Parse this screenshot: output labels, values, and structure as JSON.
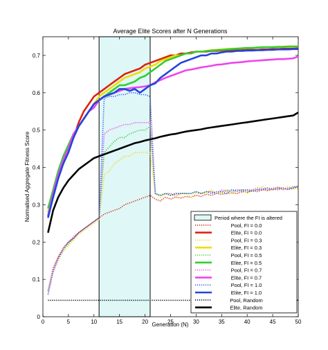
{
  "chart_data": {
    "type": "line",
    "title": "Average Elite Scores after N Generations",
    "xlabel": "Generation (N)",
    "ylabel": "Normalised Aggregate Fitness Score",
    "xlim": [
      0,
      50
    ],
    "ylim": [
      0,
      0.75
    ],
    "xticks": [
      0,
      5,
      10,
      15,
      20,
      25,
      30,
      35,
      40,
      45,
      50
    ],
    "yticks": [
      0,
      0.1,
      0.2,
      0.3,
      0.4,
      0.5,
      0.6,
      0.7
    ],
    "xtick_labels": [
      "0",
      "5",
      "10",
      "15",
      "20",
      "25",
      "30",
      "35",
      "40",
      "45",
      "50"
    ],
    "ytick_labels": [
      "0",
      "0.1",
      "0.2",
      "0.3",
      "0.4",
      "0.5",
      "0.6",
      "0.7"
    ],
    "grid": false,
    "legend_position": "bottom-right",
    "highlight_region": {
      "label": "Period where the FI is altered",
      "x_start": 11,
      "x_end": 21,
      "color": "#dff7f7"
    },
    "series": [
      {
        "name": "Pool, FI = 0.0",
        "color": "#cc2200",
        "style": "dotted",
        "x": [
          1,
          2,
          3,
          4,
          5,
          6,
          7,
          8,
          9,
          10,
          11,
          12,
          13,
          14,
          15,
          16,
          17,
          18,
          19,
          20,
          21,
          22,
          23,
          24,
          25,
          26,
          27,
          28,
          29,
          30,
          31,
          32,
          33,
          34,
          35,
          36,
          37,
          38,
          39,
          40,
          41,
          42,
          43,
          44,
          45,
          46,
          47,
          48,
          49,
          50
        ],
        "y": [
          0.07,
          0.13,
          0.16,
          0.185,
          0.2,
          0.21,
          0.225,
          0.235,
          0.245,
          0.255,
          0.265,
          0.275,
          0.28,
          0.285,
          0.29,
          0.3,
          0.305,
          0.31,
          0.315,
          0.32,
          0.325,
          0.315,
          0.31,
          0.32,
          0.315,
          0.32,
          0.318,
          0.322,
          0.32,
          0.325,
          0.322,
          0.328,
          0.325,
          0.33,
          0.328,
          0.33,
          0.332,
          0.33,
          0.335,
          0.333,
          0.338,
          0.335,
          0.34,
          0.338,
          0.342,
          0.34,
          0.345,
          0.342,
          0.345,
          0.345
        ]
      },
      {
        "name": "Elite, FI = 0.0",
        "color": "#dd2211",
        "style": "solid",
        "x": [
          1,
          2,
          3,
          4,
          5,
          6,
          7,
          8,
          9,
          10,
          11,
          12,
          13,
          14,
          15,
          16,
          17,
          18,
          19,
          20,
          21,
          22,
          23,
          24,
          25,
          26,
          27,
          28,
          29,
          30,
          31,
          32,
          33,
          34,
          35,
          36,
          37,
          38,
          39,
          40,
          41,
          42,
          43,
          44,
          45,
          46,
          47,
          48,
          49,
          50
        ],
        "y": [
          0.27,
          0.33,
          0.38,
          0.42,
          0.45,
          0.48,
          0.52,
          0.55,
          0.57,
          0.59,
          0.6,
          0.61,
          0.62,
          0.63,
          0.64,
          0.65,
          0.655,
          0.66,
          0.665,
          0.675,
          0.68,
          0.685,
          0.69,
          0.695,
          0.7,
          0.7,
          0.705,
          0.705,
          0.708,
          0.71,
          0.71,
          0.71,
          0.712,
          0.712,
          0.713,
          0.713,
          0.713,
          0.714,
          0.714,
          0.715,
          0.715,
          0.715,
          0.716,
          0.716,
          0.717,
          0.717,
          0.718,
          0.718,
          0.718,
          0.719
        ]
      },
      {
        "name": "Pool, FI = 0.3",
        "color": "#eedd00",
        "style": "dotted",
        "x": [
          1,
          2,
          3,
          4,
          5,
          6,
          7,
          8,
          9,
          10,
          11,
          12,
          13,
          14,
          15,
          16,
          17,
          18,
          19,
          20,
          21,
          22,
          23,
          24,
          25,
          26,
          27,
          28,
          29,
          30,
          31,
          32,
          33,
          34,
          35,
          36,
          37,
          38,
          39,
          40,
          41,
          42,
          43,
          44,
          45,
          46,
          47,
          48,
          49,
          50
        ],
        "y": [
          0.06,
          0.12,
          0.15,
          0.175,
          0.19,
          0.205,
          0.22,
          0.23,
          0.24,
          0.25,
          0.26,
          0.38,
          0.39,
          0.41,
          0.42,
          0.43,
          0.43,
          0.44,
          0.44,
          0.44,
          0.44,
          0.33,
          0.32,
          0.33,
          0.33,
          0.32,
          0.33,
          0.33,
          0.32,
          0.33,
          0.33,
          0.33,
          0.34,
          0.33,
          0.33,
          0.34,
          0.33,
          0.34,
          0.34,
          0.33,
          0.34,
          0.34,
          0.35,
          0.34,
          0.34,
          0.35,
          0.34,
          0.35,
          0.34,
          0.35
        ]
      },
      {
        "name": "Elite, FI = 0.3",
        "color": "#eedd00",
        "style": "solid",
        "x": [
          1,
          2,
          3,
          4,
          5,
          6,
          7,
          8,
          9,
          10,
          11,
          12,
          13,
          14,
          15,
          16,
          17,
          18,
          19,
          20,
          21,
          22,
          23,
          24,
          25,
          26,
          27,
          28,
          29,
          30,
          31,
          32,
          33,
          34,
          35,
          36,
          37,
          38,
          39,
          40,
          41,
          42,
          43,
          44,
          45,
          46,
          47,
          48,
          49,
          50
        ],
        "y": [
          0.28,
          0.33,
          0.37,
          0.41,
          0.45,
          0.48,
          0.51,
          0.53,
          0.55,
          0.57,
          0.59,
          0.6,
          0.61,
          0.62,
          0.63,
          0.64,
          0.645,
          0.65,
          0.655,
          0.665,
          0.67,
          0.675,
          0.685,
          0.69,
          0.695,
          0.7,
          0.7,
          0.705,
          0.705,
          0.71,
          0.71,
          0.712,
          0.714,
          0.715,
          0.716,
          0.717,
          0.718,
          0.718,
          0.719,
          0.72,
          0.72,
          0.721,
          0.721,
          0.722,
          0.722,
          0.722,
          0.723,
          0.723,
          0.723,
          0.724
        ]
      },
      {
        "name": "Pool, FI = 0.5",
        "color": "#33cc33",
        "style": "dotted",
        "x": [
          1,
          2,
          3,
          4,
          5,
          6,
          7,
          8,
          9,
          10,
          11,
          12,
          13,
          14,
          15,
          16,
          17,
          18,
          19,
          20,
          21,
          22,
          23,
          24,
          25,
          26,
          27,
          28,
          29,
          30,
          31,
          32,
          33,
          34,
          35,
          36,
          37,
          38,
          39,
          40,
          41,
          42,
          43,
          44,
          45,
          46,
          47,
          48,
          49,
          50
        ],
        "y": [
          0.06,
          0.12,
          0.155,
          0.18,
          0.195,
          0.21,
          0.225,
          0.235,
          0.245,
          0.255,
          0.265,
          0.44,
          0.455,
          0.47,
          0.48,
          0.48,
          0.49,
          0.495,
          0.5,
          0.5,
          0.51,
          0.33,
          0.325,
          0.33,
          0.325,
          0.33,
          0.33,
          0.33,
          0.33,
          0.335,
          0.33,
          0.335,
          0.335,
          0.33,
          0.335,
          0.34,
          0.335,
          0.34,
          0.34,
          0.335,
          0.34,
          0.345,
          0.34,
          0.345,
          0.34,
          0.345,
          0.345,
          0.34,
          0.35,
          0.345
        ]
      },
      {
        "name": "Elite, FI = 0.5",
        "color": "#33cc33",
        "style": "solid",
        "x": [
          1,
          2,
          3,
          4,
          5,
          6,
          7,
          8,
          9,
          10,
          11,
          12,
          13,
          14,
          15,
          16,
          17,
          18,
          19,
          20,
          21,
          22,
          23,
          24,
          25,
          26,
          27,
          28,
          29,
          30,
          31,
          32,
          33,
          34,
          35,
          36,
          37,
          38,
          39,
          40,
          41,
          42,
          43,
          44,
          45,
          46,
          47,
          48,
          49,
          50
        ],
        "y": [
          0.29,
          0.34,
          0.39,
          0.43,
          0.46,
          0.49,
          0.51,
          0.53,
          0.55,
          0.57,
          0.58,
          0.59,
          0.6,
          0.61,
          0.62,
          0.62,
          0.625,
          0.63,
          0.64,
          0.645,
          0.655,
          0.665,
          0.675,
          0.685,
          0.69,
          0.695,
          0.7,
          0.705,
          0.705,
          0.71,
          0.71,
          0.712,
          0.713,
          0.714,
          0.715,
          0.716,
          0.717,
          0.718,
          0.719,
          0.72,
          0.72,
          0.721,
          0.722,
          0.722,
          0.722,
          0.723,
          0.723,
          0.724,
          0.724,
          0.724
        ]
      },
      {
        "name": "Pool, FI = 0.7",
        "color": "#ee44ee",
        "style": "dotted",
        "x": [
          1,
          2,
          3,
          4,
          5,
          6,
          7,
          8,
          9,
          10,
          11,
          12,
          13,
          14,
          15,
          16,
          17,
          18,
          19,
          20,
          21,
          22,
          23,
          24,
          25,
          26,
          27,
          28,
          29,
          30,
          31,
          32,
          33,
          34,
          35,
          36,
          37,
          38,
          39,
          40,
          41,
          42,
          43,
          44,
          45,
          46,
          47,
          48,
          49,
          50
        ],
        "y": [
          0.06,
          0.125,
          0.16,
          0.18,
          0.2,
          0.215,
          0.225,
          0.235,
          0.245,
          0.255,
          0.265,
          0.49,
          0.5,
          0.505,
          0.51,
          0.515,
          0.515,
          0.52,
          0.52,
          0.52,
          0.52,
          0.33,
          0.325,
          0.33,
          0.33,
          0.325,
          0.33,
          0.33,
          0.33,
          0.335,
          0.33,
          0.335,
          0.335,
          0.33,
          0.34,
          0.335,
          0.34,
          0.34,
          0.335,
          0.34,
          0.34,
          0.34,
          0.345,
          0.34,
          0.345,
          0.345,
          0.34,
          0.345,
          0.345,
          0.35
        ]
      },
      {
        "name": "Elite, FI = 0.7",
        "color": "#ee44ee",
        "style": "solid",
        "x": [
          1,
          2,
          3,
          4,
          5,
          6,
          7,
          8,
          9,
          10,
          11,
          12,
          13,
          14,
          15,
          16,
          17,
          18,
          19,
          20,
          21,
          22,
          23,
          24,
          25,
          26,
          27,
          28,
          29,
          30,
          31,
          32,
          33,
          34,
          35,
          36,
          37,
          38,
          39,
          40,
          41,
          42,
          43,
          44,
          45,
          46,
          47,
          48,
          49,
          50
        ],
        "y": [
          0.27,
          0.33,
          0.38,
          0.42,
          0.45,
          0.49,
          0.51,
          0.53,
          0.55,
          0.56,
          0.58,
          0.59,
          0.595,
          0.6,
          0.605,
          0.61,
          0.612,
          0.614,
          0.615,
          0.617,
          0.62,
          0.628,
          0.634,
          0.64,
          0.645,
          0.65,
          0.655,
          0.66,
          0.662,
          0.665,
          0.668,
          0.67,
          0.672,
          0.675,
          0.676,
          0.678,
          0.68,
          0.681,
          0.682,
          0.684,
          0.685,
          0.686,
          0.687,
          0.688,
          0.689,
          0.69,
          0.69,
          0.691,
          0.692,
          0.697
        ]
      },
      {
        "name": "Pool, FI = 1.0",
        "color": "#3355ee",
        "style": "dotted",
        "x": [
          1,
          2,
          3,
          4,
          5,
          6,
          7,
          8,
          9,
          10,
          11,
          12,
          13,
          14,
          15,
          16,
          17,
          18,
          19,
          20,
          21,
          22,
          23,
          24,
          25,
          26,
          27,
          28,
          29,
          30,
          31,
          32,
          33,
          34,
          35,
          36,
          37,
          38,
          39,
          40,
          41,
          42,
          43,
          44,
          45,
          46,
          47,
          48,
          49,
          50
        ],
        "y": [
          0.06,
          0.12,
          0.155,
          0.18,
          0.2,
          0.21,
          0.225,
          0.235,
          0.245,
          0.255,
          0.265,
          0.585,
          0.59,
          0.59,
          0.595,
          0.595,
          0.6,
          0.6,
          0.595,
          0.595,
          0.59,
          0.33,
          0.325,
          0.33,
          0.325,
          0.33,
          0.33,
          0.33,
          0.33,
          0.335,
          0.33,
          0.335,
          0.33,
          0.335,
          0.335,
          0.33,
          0.34,
          0.335,
          0.34,
          0.34,
          0.335,
          0.34,
          0.34,
          0.345,
          0.34,
          0.345,
          0.345,
          0.34,
          0.345,
          0.35
        ]
      },
      {
        "name": "Elite, FI = 1.0",
        "color": "#2244dd",
        "style": "solid",
        "x": [
          1,
          2,
          3,
          4,
          5,
          6,
          7,
          8,
          9,
          10,
          11,
          12,
          13,
          14,
          15,
          16,
          17,
          18,
          19,
          20,
          21,
          22,
          23,
          24,
          25,
          26,
          27,
          28,
          29,
          30,
          31,
          32,
          33,
          34,
          35,
          36,
          37,
          38,
          39,
          40,
          41,
          42,
          43,
          44,
          45,
          46,
          47,
          48,
          49,
          50
        ],
        "y": [
          0.265,
          0.32,
          0.37,
          0.41,
          0.44,
          0.48,
          0.51,
          0.53,
          0.55,
          0.57,
          0.58,
          0.59,
          0.595,
          0.6,
          0.61,
          0.61,
          0.605,
          0.61,
          0.6,
          0.61,
          0.62,
          0.625,
          0.64,
          0.65,
          0.66,
          0.67,
          0.68,
          0.685,
          0.69,
          0.695,
          0.7,
          0.7,
          0.705,
          0.705,
          0.708,
          0.71,
          0.71,
          0.712,
          0.712,
          0.713,
          0.713,
          0.714,
          0.714,
          0.715,
          0.715,
          0.716,
          0.716,
          0.716,
          0.717,
          0.717
        ]
      },
      {
        "name": "Pool, Random",
        "color": "#000000",
        "style": "dotted",
        "x": [
          1,
          50
        ],
        "y": [
          0.044,
          0.044
        ]
      },
      {
        "name": "Elite, Random",
        "color": "#000000",
        "style": "solid",
        "x": [
          1,
          2,
          3,
          4,
          5,
          6,
          7,
          8,
          9,
          10,
          11,
          12,
          13,
          14,
          15,
          16,
          17,
          18,
          19,
          20,
          21,
          22,
          23,
          24,
          25,
          26,
          27,
          28,
          29,
          30,
          31,
          32,
          33,
          34,
          35,
          36,
          37,
          38,
          39,
          40,
          41,
          42,
          43,
          44,
          45,
          46,
          47,
          48,
          49,
          50
        ],
        "y": [
          0.225,
          0.285,
          0.32,
          0.345,
          0.365,
          0.38,
          0.395,
          0.405,
          0.415,
          0.425,
          0.43,
          0.435,
          0.44,
          0.445,
          0.45,
          0.455,
          0.46,
          0.465,
          0.468,
          0.472,
          0.475,
          0.478,
          0.482,
          0.485,
          0.488,
          0.49,
          0.493,
          0.496,
          0.498,
          0.5,
          0.502,
          0.505,
          0.507,
          0.509,
          0.511,
          0.513,
          0.515,
          0.517,
          0.519,
          0.521,
          0.523,
          0.525,
          0.527,
          0.529,
          0.531,
          0.533,
          0.535,
          0.537,
          0.539,
          0.547
        ]
      }
    ]
  }
}
